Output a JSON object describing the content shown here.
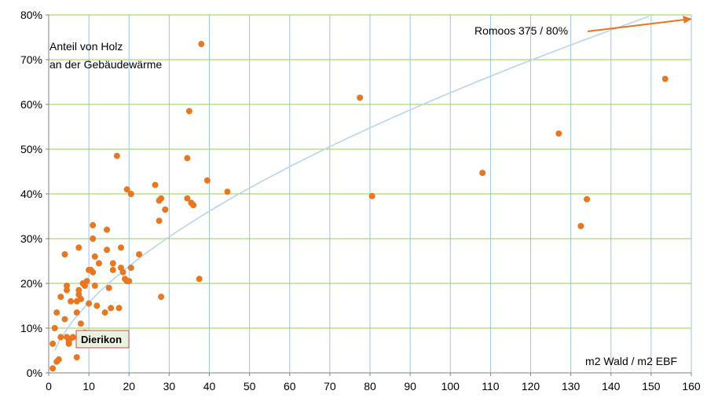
{
  "chart_data": {
    "type": "scatter",
    "title": "",
    "ylabel_annotation": [
      "Anteil von Holz",
      "an der Gebäudewärme"
    ],
    "xlabel_annotation": "m2 Wald / m2 EBF",
    "xlim": [
      0,
      160
    ],
    "ylim": [
      0,
      0.8
    ],
    "xticks": [
      0,
      10,
      20,
      30,
      40,
      50,
      60,
      70,
      80,
      90,
      100,
      110,
      120,
      130,
      140,
      150,
      160
    ],
    "yticks": [
      0,
      0.1,
      0.2,
      0.3,
      0.4,
      0.5,
      0.6,
      0.7,
      0.8
    ],
    "ytick_labels": [
      "0%",
      "10%",
      "20%",
      "30%",
      "40%",
      "50%",
      "60%",
      "70%",
      "80%"
    ],
    "grid": true,
    "colors": {
      "points": "#E87722",
      "trend": "#B8D4EA",
      "vgrid": "#9DC3E6",
      "hgrid": "#92D050",
      "highlight_bg": "#EBF1DE",
      "highlight_border": "#C0504D"
    },
    "series": [
      {
        "type": "scatter",
        "points": [
          [
            1,
            0.065
          ],
          [
            1,
            0.01
          ],
          [
            1.5,
            0.1
          ],
          [
            2,
            0.025
          ],
          [
            2.5,
            0.03
          ],
          [
            2,
            0.135
          ],
          [
            3,
            0.17
          ],
          [
            3,
            0.08
          ],
          [
            4,
            0.12
          ],
          [
            4,
            0.265
          ],
          [
            4.5,
            0.195
          ],
          [
            4.5,
            0.185
          ],
          [
            4.5,
            0.08
          ],
          [
            5,
            0.065
          ],
          [
            5,
            0.07
          ],
          [
            5.5,
            0.16
          ],
          [
            6,
            0.08
          ],
          [
            7,
            0.135
          ],
          [
            7,
            0.16
          ],
          [
            7,
            0.035
          ],
          [
            7.5,
            0.175
          ],
          [
            7.5,
            0.185
          ],
          [
            8,
            0.11
          ],
          [
            7.5,
            0.28
          ],
          [
            8,
            0.165
          ],
          [
            8,
            0.08
          ],
          [
            8.5,
            0.2
          ],
          [
            9,
            0.195
          ],
          [
            9,
            0.09
          ],
          [
            9.5,
            0.205
          ],
          [
            10,
            0.155
          ],
          [
            10,
            0.23
          ],
          [
            10.5,
            0.23
          ],
          [
            11,
            0.33
          ],
          [
            11,
            0.3
          ],
          [
            11,
            0.225
          ],
          [
            11.5,
            0.195
          ],
          [
            11.5,
            0.26
          ],
          [
            12,
            0.15
          ],
          [
            12.5,
            0.245
          ],
          [
            14,
            0.135
          ],
          [
            14.5,
            0.32
          ],
          [
            14.5,
            0.275
          ],
          [
            15,
            0.19
          ],
          [
            15.5,
            0.145
          ],
          [
            16,
            0.245
          ],
          [
            16,
            0.23
          ],
          [
            17,
            0.485
          ],
          [
            17.5,
            0.145
          ],
          [
            18,
            0.28
          ],
          [
            18,
            0.235
          ],
          [
            18.5,
            0.225
          ],
          [
            19,
            0.21
          ],
          [
            19.5,
            0.205
          ],
          [
            19.5,
            0.41
          ],
          [
            20,
            0.205
          ],
          [
            20.5,
            0.4
          ],
          [
            20.5,
            0.235
          ],
          [
            22.5,
            0.265
          ],
          [
            26.5,
            0.42
          ],
          [
            27.5,
            0.34
          ],
          [
            27.5,
            0.385
          ],
          [
            28,
            0.17
          ],
          [
            28,
            0.39
          ],
          [
            29,
            0.365
          ],
          [
            34.5,
            0.48
          ],
          [
            34.5,
            0.39
          ],
          [
            35,
            0.585
          ],
          [
            35.5,
            0.38
          ],
          [
            36,
            0.375
          ],
          [
            37.5,
            0.21
          ],
          [
            38,
            0.735
          ],
          [
            39.5,
            0.43
          ],
          [
            44.5,
            0.405
          ],
          [
            77.5,
            0.615
          ],
          [
            80.5,
            0.395
          ],
          [
            108,
            0.447
          ],
          [
            127,
            0.535
          ],
          [
            132.5,
            0.328
          ],
          [
            134,
            0.388
          ],
          [
            153.5,
            0.657
          ]
        ]
      },
      {
        "type": "trend",
        "model": "power",
        "a": 0.0395,
        "b": 0.6
      }
    ],
    "annotations": [
      {
        "text": "Romoos 375 / 80%",
        "arrow_to": [
          160,
          0.79
        ]
      },
      {
        "text": "Dierikon",
        "marker_at": [
          5,
          0.08
        ]
      }
    ]
  }
}
